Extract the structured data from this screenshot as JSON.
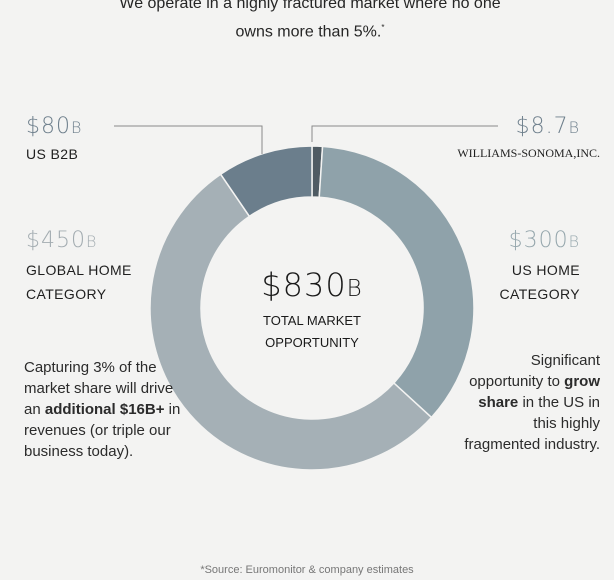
{
  "intro": {
    "line1": "We operate in a highly fractured market where no one",
    "line2": "owns more than 5%.",
    "footnote_mark": "*"
  },
  "chart_data": {
    "type": "pie",
    "donut": true,
    "total": {
      "value": "$830",
      "suffix": "B",
      "label_line1": "TOTAL MARKET",
      "label_line2": "OPPORTUNITY"
    },
    "slices": [
      {
        "name": "WILLIAMS-SONOMA, INC.",
        "value": 8.7,
        "display": "$8.7",
        "suffix": "B",
        "color": "#4f5b63"
      },
      {
        "name": "US HOME CATEGORY",
        "value": 300,
        "display": "$300",
        "suffix": "B",
        "color": "#8fa2aa"
      },
      {
        "name": "GLOBAL HOME CATEGORY",
        "value": 450,
        "display": "$450",
        "suffix": "B",
        "color": "#a5b0b6"
      },
      {
        "name": "US B2B",
        "value": 80,
        "display": "$80",
        "suffix": "B",
        "color": "#6b7e8c"
      }
    ],
    "start_angle_deg": 0,
    "labels": {
      "b2b": "US B2B",
      "ws": "WILLIAMS-SONOMA,INC.",
      "global_line1": "GLOBAL HOME",
      "global_line2": "CATEGORY",
      "us_line1": "US HOME",
      "us_line2": "CATEGORY"
    }
  },
  "notes": {
    "left_pre": "Capturing 3% of the market share will drive an ",
    "left_bold": "additional $16B+",
    "left_post": " in revenues (or triple our business today).",
    "right_pre": "Significant opportunity to ",
    "right_bold": "grow share",
    "right_post": " in the US in this highly fragmented industry."
  },
  "source": "*Source: Euromonitor & company estimates",
  "colors": {
    "background": "#f3f3f2",
    "leader_line": "#8a8a8a"
  }
}
